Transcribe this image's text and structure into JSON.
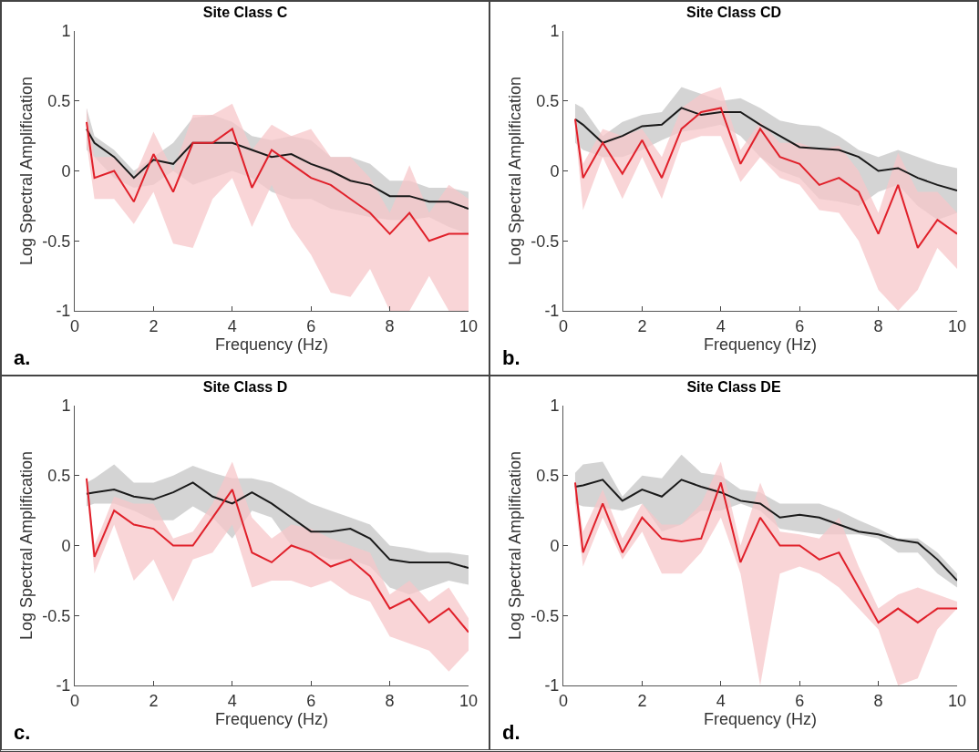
{
  "chart_data": [
    {
      "type": "line",
      "title": "Site Class C",
      "xlabel": "Frequency (Hz)",
      "ylabel": "Log Spectral Amplification",
      "annotations": [
        "a."
      ],
      "xlim": [
        0,
        10
      ],
      "xticks": [
        0,
        2,
        4,
        6,
        8,
        10
      ],
      "ylim": [
        -1,
        1
      ],
      "yticks": [
        -1,
        -0.5,
        0,
        0.5,
        1
      ],
      "x": [
        0.3,
        0.5,
        1,
        1.5,
        2,
        2.5,
        3,
        3.5,
        4,
        4.5,
        5,
        5.5,
        6,
        6.5,
        7,
        7.5,
        8,
        8.5,
        9,
        9.5,
        10
      ],
      "series": [
        {
          "color": "#1a1a1a",
          "values": [
            0.3,
            0.2,
            0.1,
            -0.05,
            0.08,
            0.05,
            0.2,
            0.2,
            0.2,
            0.15,
            0.1,
            0.12,
            0.05,
            0,
            -0.07,
            -0.1,
            -0.18,
            -0.18,
            -0.22,
            -0.22,
            -0.27
          ],
          "upper": [
            0.45,
            0.25,
            0.15,
            0,
            0.1,
            0.2,
            0.38,
            0.4,
            0.35,
            0.25,
            0.22,
            0.25,
            0.22,
            0.1,
            0.1,
            0.05,
            -0.07,
            -0.07,
            -0.12,
            -0.12,
            -0.15
          ],
          "lower": [
            0.15,
            0.1,
            -0.05,
            -0.12,
            -0.1,
            0,
            -0.1,
            -0.05,
            0,
            -0.05,
            -0.15,
            -0.2,
            -0.2,
            -0.27,
            -0.3,
            -0.33,
            -0.35,
            -0.35,
            -0.33,
            -0.4,
            -0.45
          ]
        },
        {
          "color": "#e0202a",
          "values": [
            0.35,
            -0.05,
            0,
            -0.22,
            0.12,
            -0.15,
            0.2,
            0.2,
            0.3,
            -0.12,
            0.15,
            0.05,
            -0.05,
            -0.1,
            -0.2,
            -0.3,
            -0.45,
            -0.3,
            -0.5,
            -0.45,
            -0.45
          ],
          "upper": [
            0.45,
            0.1,
            0.1,
            -0.05,
            0.28,
            0,
            0.4,
            0.4,
            0.48,
            0.15,
            0.33,
            0.25,
            0.3,
            0.1,
            0.1,
            -0.05,
            -0.3,
            0.04,
            -0.3,
            -0.1,
            -0.2
          ],
          "lower": [
            0.2,
            -0.2,
            -0.2,
            -0.38,
            -0.15,
            -0.52,
            -0.55,
            -0.2,
            -0.05,
            -0.4,
            -0.1,
            -0.4,
            -0.6,
            -0.87,
            -0.9,
            -0.7,
            -1,
            -1,
            -0.75,
            -1,
            -1
          ]
        }
      ]
    },
    {
      "type": "line",
      "title": "Site Class CD",
      "xlabel": "Frequency (Hz)",
      "ylabel": "Log Spectral Amplification",
      "annotations": [
        "b."
      ],
      "xlim": [
        0,
        10
      ],
      "xticks": [
        0,
        2,
        4,
        6,
        8,
        10
      ],
      "ylim": [
        -1,
        1
      ],
      "yticks": [
        -1,
        -0.5,
        0,
        0.5,
        1
      ],
      "x": [
        0.3,
        0.5,
        1,
        1.5,
        2,
        2.5,
        3,
        3.5,
        4,
        4.5,
        5,
        5.5,
        6,
        6.5,
        7,
        7.5,
        8,
        8.5,
        9,
        9.5,
        10
      ],
      "series": [
        {
          "color": "#1a1a1a",
          "values": [
            0.37,
            0.33,
            0.2,
            0.25,
            0.32,
            0.33,
            0.45,
            0.4,
            0.42,
            0.42,
            0.33,
            0.25,
            0.17,
            0.16,
            0.15,
            0.1,
            0,
            0.02,
            -0.05,
            -0.1,
            -0.14
          ],
          "upper": [
            0.48,
            0.45,
            0.25,
            0.35,
            0.4,
            0.42,
            0.6,
            0.55,
            0.5,
            0.52,
            0.45,
            0.36,
            0.33,
            0.32,
            0.25,
            0.15,
            0.1,
            0.15,
            0.1,
            0.05,
            0.02
          ],
          "lower": [
            0.2,
            0.15,
            0.1,
            0.1,
            0.15,
            0.22,
            0.28,
            0.3,
            0.33,
            0.25,
            0.1,
            0,
            -0.05,
            -0.2,
            -0.22,
            -0.25,
            -0.15,
            -0.1,
            -0.25,
            -0.35,
            -0.3
          ]
        },
        {
          "color": "#e0202a",
          "values": [
            0.37,
            -0.05,
            0.2,
            -0.02,
            0.22,
            -0.05,
            0.3,
            0.42,
            0.45,
            0.05,
            0.3,
            0.1,
            0.05,
            -0.1,
            -0.05,
            -0.15,
            -0.45,
            -0.1,
            -0.55,
            -0.35,
            -0.45
          ],
          "upper": [
            0.4,
            0.05,
            0.3,
            0.25,
            0.3,
            0.1,
            0.45,
            0.55,
            0.6,
            0.15,
            0.35,
            0.2,
            0.2,
            0.15,
            0.18,
            0,
            -0.3,
            0.13,
            -0.15,
            -0.15,
            -0.3
          ],
          "lower": [
            0.3,
            -0.28,
            0.1,
            -0.2,
            0.1,
            -0.2,
            0.2,
            0.25,
            0.25,
            -0.08,
            0.1,
            -0.05,
            -0.1,
            -0.28,
            -0.3,
            -0.5,
            -0.85,
            -1,
            -0.85,
            -0.55,
            -0.7
          ]
        }
      ]
    },
    {
      "type": "line",
      "title": "Site Class D",
      "xlabel": "Frequency (Hz)",
      "ylabel": "Log Spectral Amplification",
      "annotations": [
        "c."
      ],
      "xlim": [
        0,
        10
      ],
      "xticks": [
        0,
        2,
        4,
        6,
        8,
        10
      ],
      "ylim": [
        -1,
        1
      ],
      "yticks": [
        -1,
        -0.5,
        0,
        0.5,
        1
      ],
      "x": [
        0.3,
        0.5,
        1,
        1.5,
        2,
        2.5,
        3,
        3.5,
        4,
        4.5,
        5,
        5.5,
        6,
        6.5,
        7,
        7.5,
        8,
        8.5,
        9,
        9.5,
        10
      ],
      "series": [
        {
          "color": "#1a1a1a",
          "values": [
            0.37,
            0.38,
            0.4,
            0.35,
            0.33,
            0.38,
            0.45,
            0.35,
            0.3,
            0.38,
            0.3,
            0.2,
            0.1,
            0.1,
            0.12,
            0.05,
            -0.1,
            -0.12,
            -0.12,
            -0.12,
            -0.16
          ],
          "upper": [
            0.45,
            0.48,
            0.58,
            0.45,
            0.45,
            0.5,
            0.57,
            0.52,
            0.48,
            0.48,
            0.45,
            0.38,
            0.3,
            0.25,
            0.2,
            0.15,
            0,
            -0.02,
            -0.05,
            -0.05,
            -0.07
          ],
          "lower": [
            0.28,
            0.3,
            0.3,
            0.25,
            0.18,
            0.18,
            0.28,
            0.2,
            0.05,
            0.25,
            0.2,
            0,
            -0.05,
            -0.1,
            -0.1,
            -0.15,
            -0.3,
            -0.35,
            -0.3,
            -0.25,
            -0.28
          ]
        },
        {
          "color": "#e0202a",
          "values": [
            0.48,
            -0.08,
            0.25,
            0.15,
            0.12,
            0,
            0,
            0.2,
            0.4,
            -0.05,
            -0.12,
            0,
            -0.05,
            -0.15,
            -0.1,
            -0.22,
            -0.45,
            -0.38,
            -0.55,
            -0.45,
            -0.62
          ],
          "upper": [
            0.5,
            0,
            0.35,
            0.3,
            0.3,
            0.05,
            0.1,
            0.3,
            0.6,
            0.2,
            0.05,
            0.15,
            0.12,
            0.05,
            0,
            -0.05,
            -0.35,
            -0.25,
            -0.4,
            -0.3,
            -0.52
          ],
          "lower": [
            0.4,
            -0.2,
            0.15,
            -0.25,
            -0.1,
            -0.4,
            -0.1,
            -0.05,
            0.15,
            -0.3,
            -0.25,
            -0.25,
            -0.3,
            -0.25,
            -0.35,
            -0.4,
            -0.65,
            -0.7,
            -0.75,
            -0.9,
            -0.75
          ]
        }
      ]
    },
    {
      "type": "line",
      "title": "Site Class DE",
      "xlabel": "Frequency (Hz)",
      "ylabel": "Log Spectral Amplification",
      "annotations": [
        "d."
      ],
      "xlim": [
        0,
        10
      ],
      "xticks": [
        0,
        2,
        4,
        6,
        8,
        10
      ],
      "ylim": [
        -1,
        1
      ],
      "yticks": [
        -1,
        -0.5,
        0,
        0.5,
        1
      ],
      "x": [
        0.3,
        0.5,
        1,
        1.5,
        2,
        2.5,
        3,
        3.5,
        4,
        4.5,
        5,
        5.5,
        6,
        6.5,
        7,
        7.5,
        8,
        8.5,
        9,
        9.5,
        10
      ],
      "series": [
        {
          "color": "#1a1a1a",
          "values": [
            0.42,
            0.43,
            0.47,
            0.32,
            0.4,
            0.35,
            0.47,
            0.42,
            0.38,
            0.32,
            0.3,
            0.2,
            0.22,
            0.2,
            0.15,
            0.1,
            0.08,
            0.04,
            0.02,
            -0.1,
            -0.25
          ],
          "upper": [
            0.52,
            0.58,
            0.6,
            0.35,
            0.5,
            0.48,
            0.65,
            0.52,
            0.5,
            0.4,
            0.38,
            0.3,
            0.3,
            0.3,
            0.25,
            0.18,
            0.12,
            0.05,
            0.05,
            -0.05,
            -0.2
          ],
          "lower": [
            0.3,
            0.28,
            0.27,
            0.25,
            0.3,
            0.1,
            0.15,
            0.25,
            0.25,
            0.3,
            0.25,
            0.12,
            0.1,
            0.08,
            0.08,
            0.08,
            0.05,
            -0.05,
            -0.05,
            -0.2,
            -0.3
          ]
        },
        {
          "color": "#e0202a",
          "values": [
            0.45,
            -0.05,
            0.3,
            -0.05,
            0.2,
            0.05,
            0.03,
            0.05,
            0.45,
            -0.12,
            0.2,
            0,
            0,
            -0.1,
            -0.05,
            -0.3,
            -0.55,
            -0.45,
            -0.55,
            -0.45,
            -0.45
          ],
          "upper": [
            0.47,
            0.1,
            0.4,
            0.05,
            0.3,
            0.15,
            0.15,
            0.3,
            0.6,
            0,
            0.45,
            0.1,
            0.08,
            0.05,
            0.2,
            -0.15,
            -0.45,
            -0.35,
            -0.3,
            -0.35,
            -0.4
          ],
          "lower": [
            0.3,
            -0.15,
            0.2,
            -0.1,
            0.1,
            -0.2,
            -0.2,
            -0.05,
            0.2,
            -0.2,
            -1,
            -0.2,
            -0.15,
            -0.2,
            -0.3,
            -0.45,
            -0.6,
            -1,
            -0.95,
            -0.6,
            -0.45
          ]
        }
      ]
    }
  ]
}
